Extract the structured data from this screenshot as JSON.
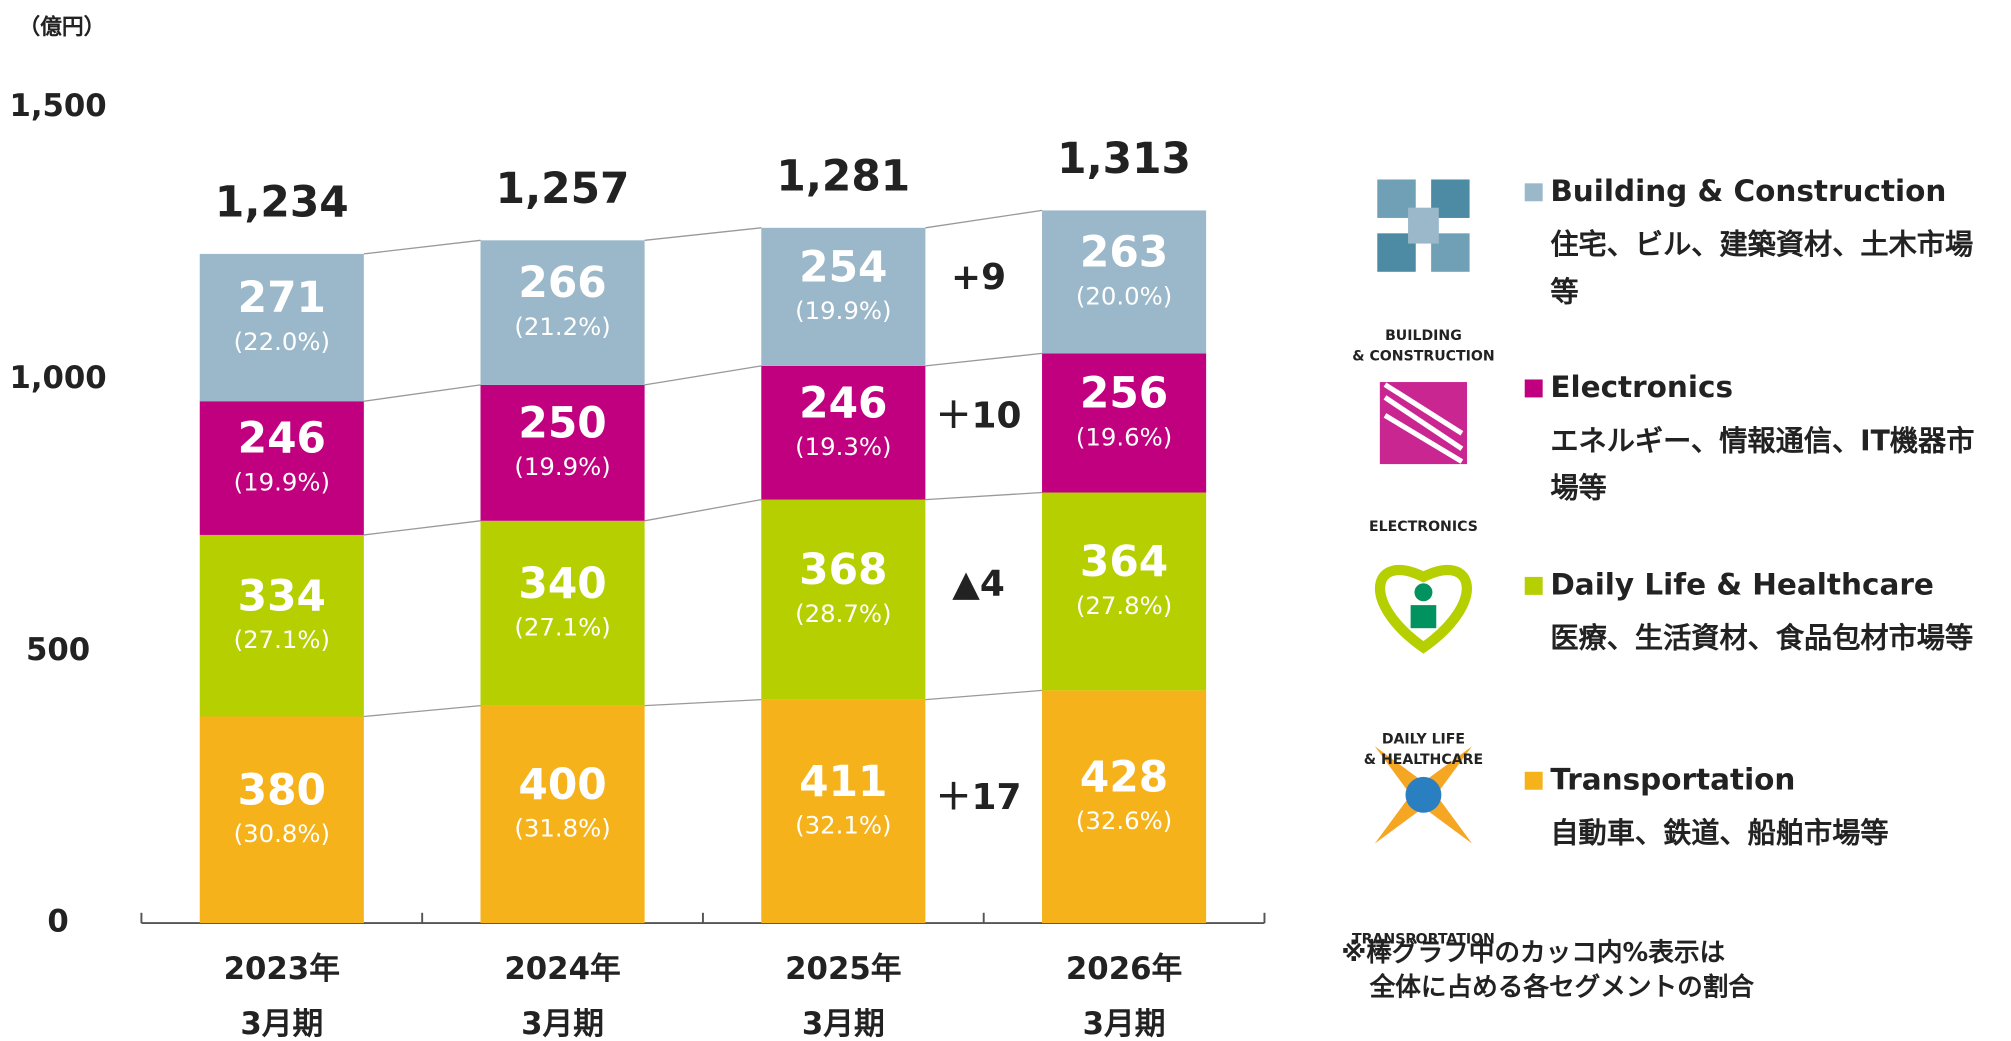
{
  "chart_data": {
    "type": "stacked_bar",
    "unit_label": "（億円）",
    "categories": [
      [
        "2023年",
        "3月期"
      ],
      [
        "2024年",
        "3月期"
      ],
      [
        "2025年",
        "3月期"
      ],
      [
        "2026年",
        "3月期"
      ]
    ],
    "ylim": [
      0,
      1500
    ],
    "yticks": [
      0,
      500,
      {
        "value": 1000,
        "label": "1,000"
      },
      {
        "value": 1500,
        "label": "1,500"
      }
    ],
    "total_labels": [
      "1,234",
      "1,257",
      "1,281",
      "1,313"
    ],
    "series": [
      {
        "name": "Transportation",
        "color": "#f5b21a",
        "values": [
          380,
          400,
          411,
          428
        ],
        "share_labels": [
          "(30.8%)",
          "(31.8%)",
          "(32.1%)",
          "(32.6%)"
        ],
        "change_label": "＋17",
        "icon_label": [
          "TRANSPORTATION"
        ],
        "description": [
          "自動車、鉄道、船舶市場等"
        ]
      },
      {
        "name": "Daily Life & Healthcare",
        "color": "#b5cf00",
        "values": [
          334,
          340,
          368,
          364
        ],
        "share_labels": [
          "(27.1%)",
          "(27.1%)",
          "(28.7%)",
          "(27.8%)"
        ],
        "change_label": "▲4",
        "icon_label": [
          "DAILY LIFE",
          "& HEALTHCARE"
        ],
        "description": [
          "医療、生活資材、食品包材市場等"
        ]
      },
      {
        "name": "Electronics",
        "color": "#c0007f",
        "values": [
          246,
          250,
          246,
          256
        ],
        "share_labels": [
          "(19.9%)",
          "(19.9%)",
          "(19.3%)",
          "(19.6%)"
        ],
        "change_label": "＋10",
        "icon_label": [
          "ELECTRONICS"
        ],
        "description": [
          "エネルギー、情報通信、IT機器市",
          "場等"
        ]
      },
      {
        "name": "Building & Construction",
        "color": "#9ab8c9",
        "values": [
          271,
          266,
          254,
          263
        ],
        "share_labels": [
          "(22.0%)",
          "(21.2%)",
          "(19.9%)",
          "(20.0%)"
        ],
        "change_label": "+9",
        "icon_label": [
          "BUILDING",
          "& CONSTRUCTION"
        ],
        "description": [
          "住宅、ビル、建築資材、土木市場",
          "等"
        ]
      }
    ],
    "footnote": [
      "※棒グラフ中のカッコ内%表示は",
      "全体に占める各セグメントの割合"
    ]
  }
}
